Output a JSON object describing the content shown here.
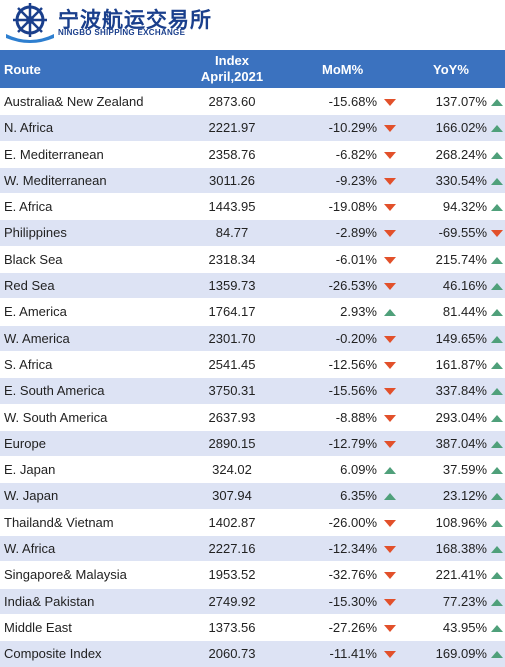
{
  "header": {
    "title": "宁波航运交易所",
    "subtitle": "NINGBO SHIPPING EXCHANGE"
  },
  "table": {
    "columns": [
      "Route",
      "Index",
      "April,2021",
      "MoM%",
      "YoY%"
    ],
    "rows": [
      [
        "Australia& New Zealand",
        "2873.60",
        "-15.68%",
        "137.07%"
      ],
      [
        "N. Africa",
        "2221.97",
        "-10.29%",
        "166.02%"
      ],
      [
        "E. Mediterranean",
        "2358.76",
        "-6.82%",
        "268.24%"
      ],
      [
        "W. Mediterranean",
        "3011.26",
        "-9.23%",
        "330.54%"
      ],
      [
        "E. Africa",
        "1443.95",
        "-19.08%",
        "94.32%"
      ],
      [
        "Philippines",
        "84.77",
        "-2.89%",
        "-69.55%"
      ],
      [
        "Black Sea",
        "2318.34",
        "-6.01%",
        "215.74%"
      ],
      [
        "Red Sea",
        "1359.73",
        "-26.53%",
        "46.16%"
      ],
      [
        "E. America",
        "1764.17",
        "2.93%",
        "81.44%"
      ],
      [
        "W. America",
        "2301.70",
        "-0.20%",
        "149.65%"
      ],
      [
        "S. Africa",
        "2541.45",
        "-12.56%",
        "161.87%"
      ],
      [
        "E. South America",
        "3750.31",
        "-15.56%",
        "337.84%"
      ],
      [
        "W. South America",
        "2637.93",
        "-8.88%",
        "293.04%"
      ],
      [
        "Europe",
        "2890.15",
        "-12.79%",
        "387.04%"
      ],
      [
        "E. Japan",
        "324.02",
        "6.09%",
        "37.59%"
      ],
      [
        "W. Japan",
        "307.94",
        "6.35%",
        "23.12%"
      ],
      [
        "Thailand& Vietnam",
        "1402.87",
        "-26.00%",
        "108.96%"
      ],
      [
        "W. Africa",
        "2227.16",
        "-12.34%",
        "168.38%"
      ],
      [
        "Singapore& Malaysia",
        "1953.52",
        "-32.76%",
        "221.41%"
      ],
      [
        "India& Pakistan",
        "2749.92",
        "-15.30%",
        "77.23%"
      ],
      [
        "Middle East",
        "1373.56",
        "-27.26%",
        "43.95%"
      ],
      [
        "Composite Index",
        "2060.73",
        "-11.41%",
        "169.09%"
      ]
    ]
  }
}
